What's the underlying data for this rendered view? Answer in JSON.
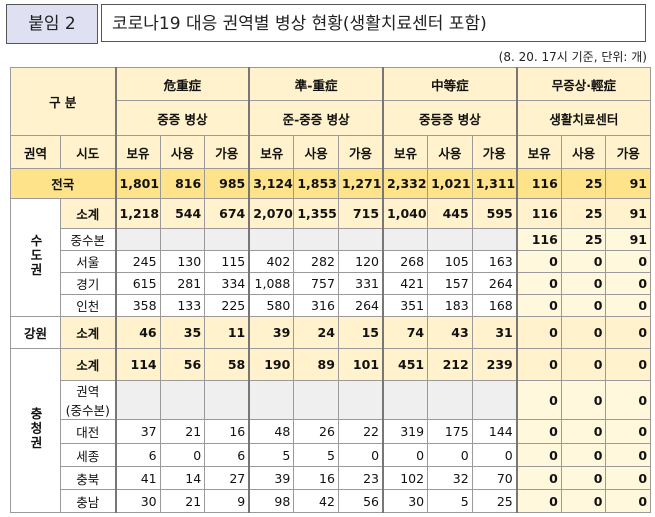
{
  "header": {
    "label": "붙임 2",
    "title": "코로나19 대응 권역별 병상 현황(생활치료센터 포함)",
    "note": "(8. 20. 17시 기준, 단위: 개)"
  },
  "table": {
    "group_header": "구 분",
    "region_header": "권역",
    "sido_header": "시도",
    "groups": [
      {
        "name": "危重症",
        "sub": "중증 병상",
        "measures": [
          "보유",
          "사용",
          "가용"
        ]
      },
      {
        "name": "準-重症",
        "sub": "준-중증 병상",
        "measures": [
          "보유",
          "사용",
          "가용"
        ]
      },
      {
        "name": "中等症",
        "sub": "중등증 병상",
        "measures": [
          "보유",
          "사용",
          "가용"
        ]
      },
      {
        "name": "무증상·輕症",
        "sub": "생활치료센터",
        "measures": [
          "보유",
          "사용",
          "가용"
        ]
      }
    ],
    "national": {
      "label": "전국",
      "cells": [
        "1,801",
        "816",
        "985",
        "3,124",
        "1,853",
        "1,271",
        "2,332",
        "1,021",
        "1,311",
        "116",
        "25",
        "91"
      ]
    },
    "regions": [
      {
        "name": "수도권",
        "rows": [
          {
            "sido": "소계",
            "cells": [
              "1,218",
              "544",
              "674",
              "2,070",
              "1,355",
              "715",
              "1,040",
              "445",
              "595",
              "116",
              "25",
              "91"
            ]
          },
          {
            "sido": "중수본",
            "cells": [
              null,
              null,
              null,
              null,
              null,
              null,
              null,
              null,
              null,
              "116",
              "25",
              "91"
            ]
          },
          {
            "sido": "서울",
            "cells": [
              "245",
              "130",
              "115",
              "402",
              "282",
              "120",
              "268",
              "105",
              "163",
              "0",
              "0",
              "0"
            ]
          },
          {
            "sido": "경기",
            "cells": [
              "615",
              "281",
              "334",
              "1,088",
              "757",
              "331",
              "421",
              "157",
              "264",
              "0",
              "0",
              "0"
            ]
          },
          {
            "sido": "인천",
            "cells": [
              "358",
              "133",
              "225",
              "580",
              "316",
              "264",
              "351",
              "183",
              "168",
              "0",
              "0",
              "0"
            ]
          }
        ]
      },
      {
        "name": "강원",
        "rows": [
          {
            "sido": "소계",
            "cells": [
              "46",
              "35",
              "11",
              "39",
              "24",
              "15",
              "74",
              "43",
              "31",
              "0",
              "0",
              "0"
            ]
          }
        ]
      },
      {
        "name": "충청권",
        "rows": [
          {
            "sido": "소계",
            "cells": [
              "114",
              "56",
              "58",
              "190",
              "89",
              "101",
              "451",
              "212",
              "239",
              "0",
              "0",
              "0"
            ]
          },
          {
            "sido": "권역\n(중수본)",
            "cells": [
              null,
              null,
              null,
              null,
              null,
              null,
              null,
              null,
              null,
              "0",
              "0",
              "0"
            ]
          },
          {
            "sido": "대전",
            "cells": [
              "37",
              "21",
              "16",
              "48",
              "26",
              "22",
              "319",
              "175",
              "144",
              "0",
              "0",
              "0"
            ]
          },
          {
            "sido": "세종",
            "cells": [
              "6",
              "0",
              "6",
              "5",
              "5",
              "0",
              "0",
              "0",
              "0",
              "0",
              "0",
              "0"
            ]
          },
          {
            "sido": "충북",
            "cells": [
              "41",
              "14",
              "27",
              "39",
              "16",
              "23",
              "102",
              "32",
              "70",
              "0",
              "0",
              "0"
            ]
          },
          {
            "sido": "충남",
            "cells": [
              "30",
              "21",
              "9",
              "98",
              "42",
              "56",
              "30",
              "5",
              "25",
              "0",
              "0",
              "0"
            ]
          }
        ]
      }
    ]
  }
}
